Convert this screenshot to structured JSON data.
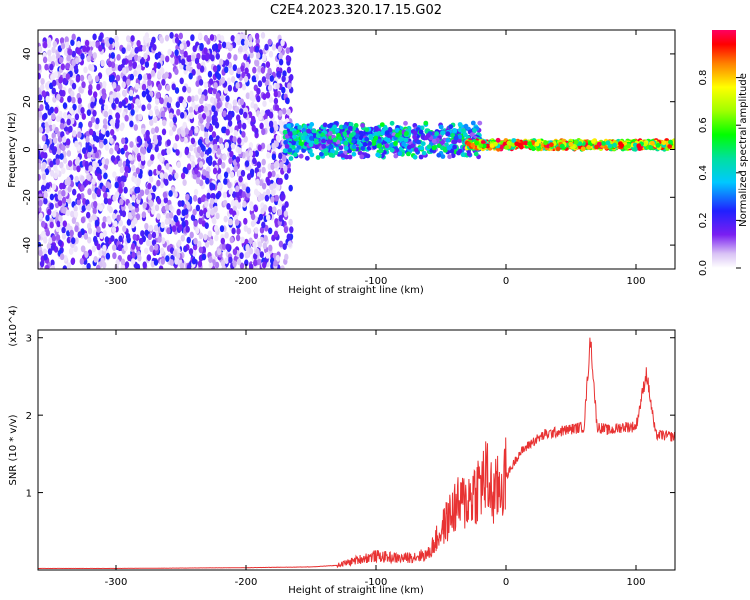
{
  "title": "C2E4.2023.320.17.15.G02",
  "colors": {
    "snr_line": "#e83232",
    "frame": "#000000"
  },
  "chart_data": [
    {
      "type": "heatmap",
      "title": "C2E4.2023.320.17.15.G02",
      "xlabel": "Height of straight line (km)",
      "ylabel": "Frequency (Hz)",
      "xlim": [
        -360,
        130
      ],
      "ylim": [
        -50,
        50
      ],
      "xticks": [
        -300,
        -200,
        -100,
        0,
        100
      ],
      "yticks": [
        -40,
        -20,
        0,
        20,
        40
      ],
      "grid": false,
      "colorbar": {
        "label": "Normalized spectral amplitude",
        "range": [
          0,
          1
        ],
        "ticks": [
          0.0,
          0.2,
          0.4,
          0.6,
          0.8
        ],
        "colormap": "rainbow",
        "position": "right"
      },
      "regions": [
        {
          "x_range": [
            -360,
            -165
          ],
          "f_range": [
            -50,
            48
          ],
          "amplitude": [
            0.02,
            0.25
          ],
          "description": "noise"
        },
        {
          "x_range": [
            -170,
            -20
          ],
          "f_center": 4,
          "f_spread": 8,
          "amplitude": [
            0.1,
            0.55
          ]
        },
        {
          "x_range": [
            -30,
            130
          ],
          "f_center": 2,
          "f_spread": 2,
          "amplitude": [
            0.4,
            1.0
          ]
        }
      ]
    },
    {
      "type": "line",
      "xlabel": "Height of straight line (km)",
      "ylabel": "SNR (10 * v/v)",
      "y_multiplier": "(x10^4)",
      "xlim": [
        -360,
        130
      ],
      "ylim": [
        0,
        3.1
      ],
      "xticks": [
        -300,
        -200,
        -100,
        0,
        100
      ],
      "yticks": [
        1,
        2,
        3
      ],
      "grid": false,
      "series": [
        {
          "x": [
            -360,
            -300,
            -200,
            -150,
            -130,
            -110,
            -100,
            -80,
            -60,
            -50,
            -40,
            -30,
            -20,
            -15,
            -10,
            0,
            10,
            20,
            30,
            50,
            60,
            65,
            70,
            80,
            90,
            100,
            108,
            115,
            130
          ],
          "values": [
            0.02,
            0.02,
            0.03,
            0.04,
            0.06,
            0.15,
            0.18,
            0.15,
            0.2,
            0.5,
            0.8,
            0.9,
            1.1,
            1.2,
            0.95,
            1.2,
            1.5,
            1.65,
            1.75,
            1.82,
            1.85,
            3.0,
            1.85,
            1.8,
            1.85,
            1.85,
            2.55,
            1.75,
            1.72
          ]
        }
      ]
    }
  ]
}
